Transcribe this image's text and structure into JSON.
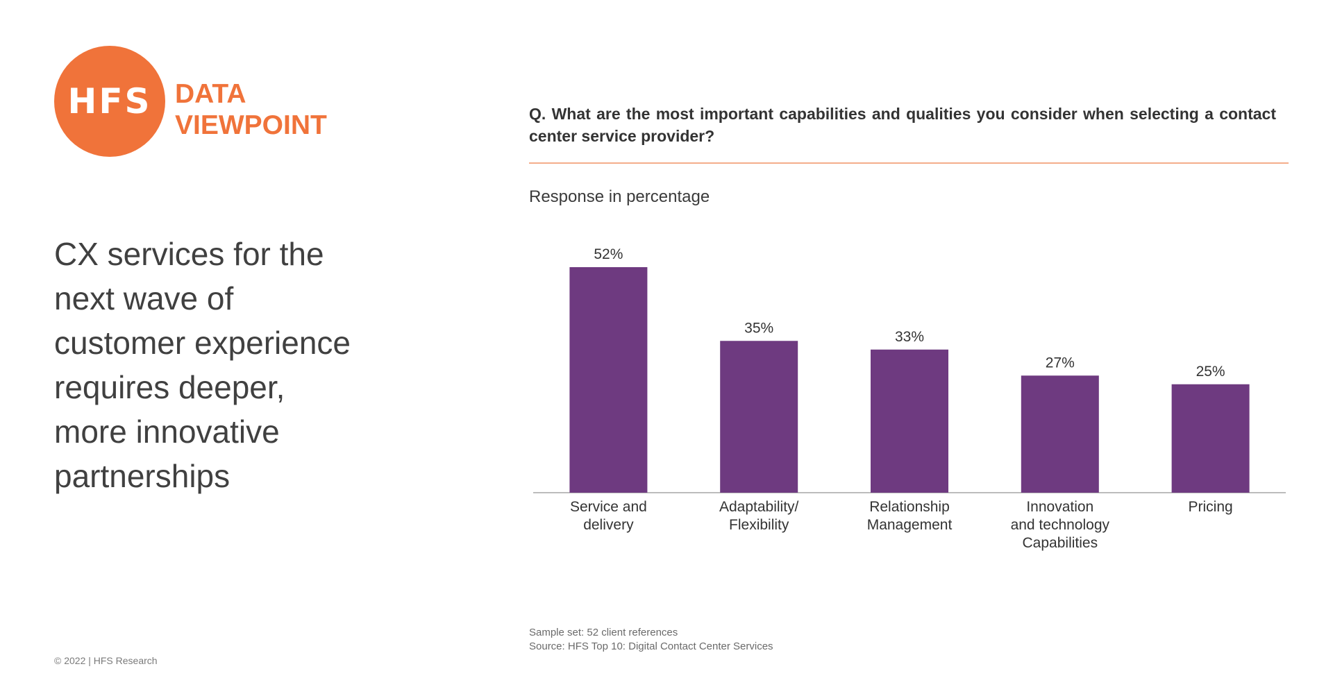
{
  "logo": {
    "mark": "HFS",
    "line1": "DATA",
    "line2": "VIEWPOINT"
  },
  "headline": {
    "lines": [
      "CX services for the",
      "next wave of",
      "customer experience",
      "requires deeper,",
      "more innovative",
      "partnerships"
    ]
  },
  "copyright": "© 2022 | HFS Research",
  "question": "Q. What are the most important capabilities and qualities you consider when selecting a contact center service provider?",
  "subtitle": "Response in percentage",
  "footnotes": {
    "sample": "Sample set: 52 client references",
    "source": "Source: HFS Top 10: Digital Contact Center Services"
  },
  "colors": {
    "brand": "#f0733a",
    "bar": "#6e3a80",
    "axis": "#a6a6a6",
    "divider": "#f4ad8a"
  },
  "chart_data": {
    "type": "bar",
    "categories": [
      [
        "Service and",
        "delivery"
      ],
      [
        "Adaptability/",
        "Flexibility"
      ],
      [
        "Relationship",
        "Management"
      ],
      [
        "Innovation",
        "and technology",
        "Capabilities"
      ],
      [
        "Pricing"
      ]
    ],
    "values": [
      52,
      35,
      33,
      27,
      25
    ],
    "data_labels": [
      "52%",
      "35%",
      "33%",
      "27%",
      "25%"
    ],
    "ylim": [
      0,
      60
    ],
    "grid": false,
    "legend": "none"
  }
}
